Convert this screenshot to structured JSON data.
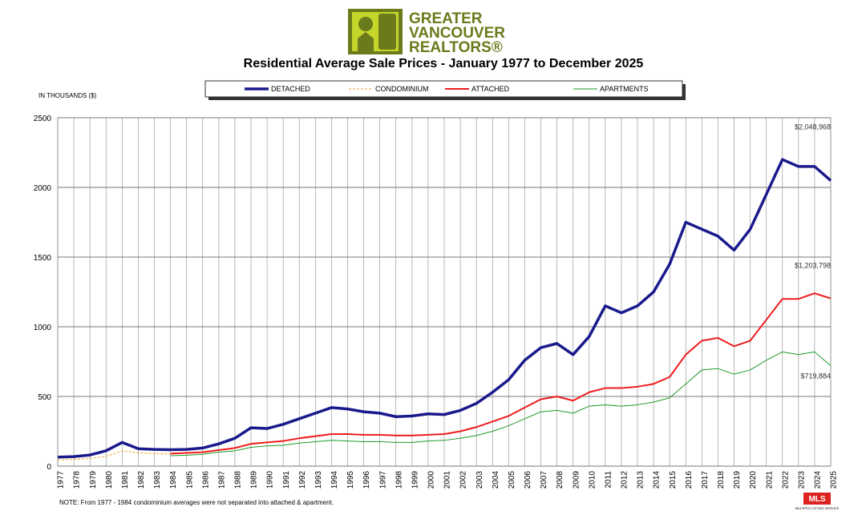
{
  "brand": {
    "lines": [
      "GREATER",
      "VANCOUVER",
      "REALTORS®"
    ]
  },
  "chart_data": {
    "type": "line",
    "title": "Residential Average Sale Prices  -  January 1977 to December 2025",
    "y_label": "IN THOUSANDS ($)",
    "note": "NOTE:  From 1977 - 1984 condominium averages were not separated into attached & apartment.",
    "x": [
      1977,
      1978,
      1979,
      1980,
      1981,
      1982,
      1983,
      1984,
      1985,
      1986,
      1987,
      1988,
      1989,
      1990,
      1991,
      1992,
      1993,
      1994,
      1995,
      1996,
      1997,
      1998,
      1999,
      2000,
      2001,
      2002,
      2003,
      2004,
      2005,
      2006,
      2007,
      2008,
      2009,
      2010,
      2011,
      2012,
      2013,
      2014,
      2015,
      2016,
      2017,
      2018,
      2019,
      2020,
      2021,
      2022,
      2023,
      2024,
      2025
    ],
    "series": [
      {
        "name": "DETACHED",
        "color": "#1a1a8c",
        "width": 3.5,
        "values": [
          65,
          68,
          80,
          110,
          170,
          125,
          120,
          118,
          120,
          130,
          160,
          200,
          275,
          270,
          300,
          340,
          380,
          420,
          410,
          390,
          380,
          355,
          360,
          375,
          370,
          400,
          450,
          530,
          620,
          760,
          850,
          880,
          800,
          930,
          1150,
          1100,
          1150,
          1250,
          1450,
          1750,
          1700,
          1650,
          1550,
          1700,
          1950,
          2200,
          2150,
          2150,
          2048.968
        ],
        "value_labels": [
          null,
          null,
          null,
          null,
          null,
          null,
          null,
          null,
          null,
          null,
          null,
          null,
          null,
          null,
          null,
          null,
          null,
          null,
          null,
          null,
          null,
          null,
          null,
          null,
          null,
          null,
          null,
          null,
          null,
          null,
          null,
          null,
          null,
          null,
          null,
          null,
          null,
          null,
          null,
          null,
          null,
          null,
          null,
          null,
          null,
          null,
          null,
          null,
          "$2,048,968"
        ]
      },
      {
        "name": "CONDOMINIUM",
        "color": "#f0a030",
        "dash": true,
        "width": 1,
        "values": [
          45,
          48,
          55,
          70,
          110,
          95,
          90,
          88,
          null,
          null,
          null,
          null,
          null,
          null,
          null,
          null,
          null,
          null,
          null,
          null,
          null,
          null,
          null,
          null,
          null,
          null,
          null,
          null,
          null,
          null,
          null,
          null,
          null,
          null,
          null,
          null,
          null,
          null,
          null,
          null,
          null,
          null,
          null,
          null,
          null,
          null,
          null,
          null,
          null
        ]
      },
      {
        "name": "ATTACHED",
        "color": "#ee1c1c",
        "width": 2,
        "values": [
          null,
          null,
          null,
          null,
          null,
          null,
          null,
          90,
          95,
          100,
          115,
          130,
          160,
          170,
          180,
          200,
          215,
          230,
          230,
          225,
          225,
          220,
          220,
          225,
          230,
          250,
          280,
          320,
          360,
          420,
          480,
          500,
          470,
          530,
          560,
          560,
          570,
          590,
          640,
          800,
          900,
          920,
          860,
          900,
          1050,
          1200,
          1200,
          1240,
          1203.798
        ],
        "value_labels": [
          null,
          null,
          null,
          null,
          null,
          null,
          null,
          null,
          null,
          null,
          null,
          null,
          null,
          null,
          null,
          null,
          null,
          null,
          null,
          null,
          null,
          null,
          null,
          null,
          null,
          null,
          null,
          null,
          null,
          null,
          null,
          null,
          null,
          null,
          null,
          null,
          null,
          null,
          null,
          null,
          null,
          null,
          null,
          null,
          null,
          null,
          null,
          null,
          "$1,203,798"
        ]
      },
      {
        "name": "APARTMENTS",
        "color": "#1e9a2a",
        "width": 1,
        "values": [
          null,
          null,
          null,
          null,
          null,
          null,
          null,
          75,
          78,
          85,
          100,
          110,
          135,
          145,
          150,
          165,
          175,
          185,
          180,
          175,
          175,
          170,
          170,
          180,
          185,
          200,
          220,
          250,
          290,
          340,
          390,
          400,
          380,
          430,
          440,
          430,
          440,
          460,
          490,
          590,
          690,
          700,
          660,
          690,
          760,
          820,
          800,
          820,
          719.884
        ],
        "value_labels": [
          null,
          null,
          null,
          null,
          null,
          null,
          null,
          null,
          null,
          null,
          null,
          null,
          null,
          null,
          null,
          null,
          null,
          null,
          null,
          null,
          null,
          null,
          null,
          null,
          null,
          null,
          null,
          null,
          null,
          null,
          null,
          null,
          null,
          null,
          null,
          null,
          null,
          null,
          null,
          null,
          null,
          null,
          null,
          null,
          null,
          null,
          null,
          null,
          "$719,884"
        ]
      }
    ],
    "xlim": [
      1977,
      2025
    ],
    "xticks": [
      1977,
      1978,
      1979,
      1980,
      1981,
      1982,
      1983,
      1984,
      1985,
      1986,
      1987,
      1988,
      1989,
      1990,
      1991,
      1992,
      1993,
      1994,
      1995,
      1996,
      1997,
      1998,
      1999,
      2000,
      2001,
      2002,
      2003,
      2004,
      2005,
      2006,
      2007,
      2008,
      2009,
      2010,
      2011,
      2012,
      2013,
      2014,
      2015,
      2016,
      2017,
      2018,
      2019,
      2020,
      2021,
      2022,
      2023,
      2024,
      2025
    ],
    "ylim": [
      0,
      2500
    ],
    "yticks": [
      0,
      500,
      1000,
      1500,
      2000,
      2500
    ],
    "grid": true
  },
  "mls": {
    "logo": "MLS",
    "caption": "MULTIPLE LISTING SERVICE"
  }
}
